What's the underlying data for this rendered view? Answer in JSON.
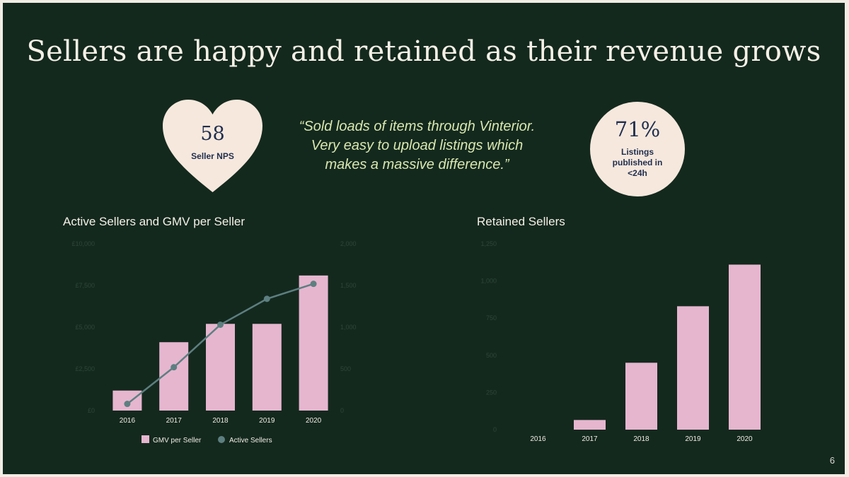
{
  "slide": {
    "title": "Sellers are happy and retained as their revenue grows",
    "page_number": "6"
  },
  "stats": {
    "nps": {
      "value": "58",
      "label": "Seller NPS"
    },
    "quote": "“Sold loads of items through Vinterior. Very easy to upload listings which makes a massive difference.”",
    "listings": {
      "value": "71%",
      "label": "Listings published in <24h"
    }
  },
  "colors": {
    "background": "#14291e",
    "bar": "#e6b6cf",
    "line": "#5d7f80",
    "quote": "#d8e7ae",
    "badge": "#f6e8dd"
  },
  "chart_data": [
    {
      "type": "bar",
      "title": "Active Sellers and GMV per Seller",
      "categories": [
        "2016",
        "2017",
        "2018",
        "2019",
        "2020"
      ],
      "ylim": [
        0,
        10000
      ],
      "ylim_right": [
        0,
        2000
      ],
      "yticks": [
        "£0",
        "£2,500",
        "£5,000",
        "£7,500",
        "£10,000"
      ],
      "yticks_right": [
        "0",
        "500",
        "1,000",
        "1,500",
        "2,000"
      ],
      "legend_position": "bottom",
      "series": [
        {
          "name": "GMV per Seller",
          "type": "bar",
          "axis": "left",
          "color": "#e6b6cf",
          "values": [
            1200,
            4100,
            5200,
            5200,
            8100
          ]
        },
        {
          "name": "Active Sellers",
          "type": "line",
          "axis": "right",
          "color": "#5d7f80",
          "values": [
            80,
            520,
            1030,
            1340,
            1520
          ]
        }
      ]
    },
    {
      "type": "bar",
      "title": "Retained Sellers",
      "categories": [
        "2016",
        "2017",
        "2018",
        "2019",
        "2020"
      ],
      "ylim": [
        0,
        1200
      ],
      "yticks": [
        "0",
        "250",
        "500",
        "750",
        "1,000",
        "1,250"
      ],
      "series": [
        {
          "name": "",
          "color": "#e6b6cf",
          "values": [
            0,
            65,
            450,
            830,
            1110
          ]
        }
      ]
    }
  ]
}
